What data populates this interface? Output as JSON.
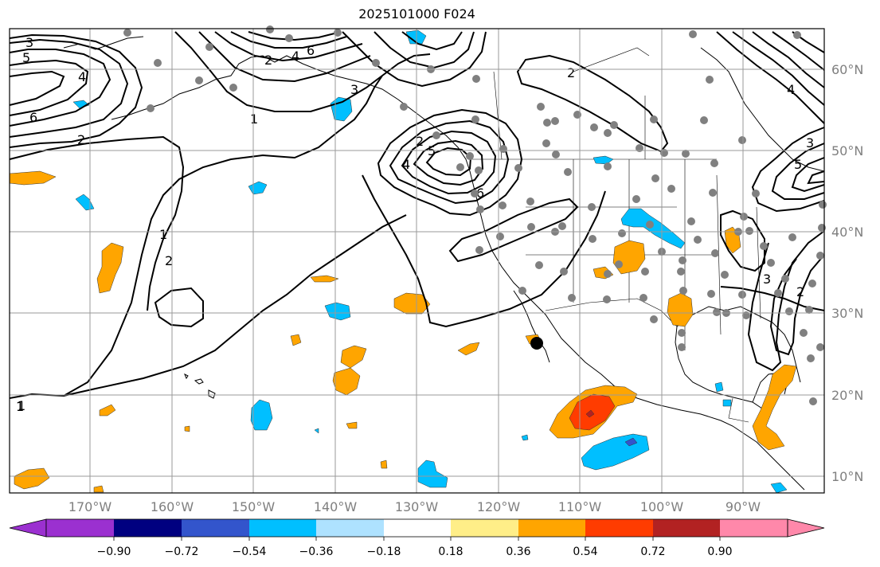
{
  "title": "2025101000 F024",
  "map": {
    "lon_labels": [
      "170°W",
      "160°W",
      "150°W",
      "140°W",
      "130°W",
      "120°W",
      "110°W",
      "100°W",
      "90°W"
    ],
    "lat_labels": [
      "60°N",
      "50°N",
      "40°N",
      "30°N",
      "20°N",
      "10°N"
    ],
    "contour_labels": [
      "3",
      "5",
      "4",
      "6",
      "2",
      "1",
      "2",
      "1",
      "4",
      "6",
      "2",
      "3",
      "4",
      "5",
      "6",
      "2",
      "1",
      "1",
      "2",
      "4",
      "5",
      "3",
      "2",
      "3"
    ],
    "marker_label": ""
  },
  "colorbar": {
    "ticks": [
      "−0.90",
      "−0.72",
      "−0.54",
      "−0.36",
      "−0.18",
      "0.18",
      "0.36",
      "0.54",
      "0.72",
      "0.90"
    ],
    "colors": [
      "#9b30d0",
      "#000080",
      "#3355cc",
      "#00bfff",
      "#aee2ff",
      "#ffffff",
      "#ffee88",
      "#ffa500",
      "#ff3c00",
      "#b22222",
      "#ff88aa"
    ]
  },
  "colors": {
    "positive": "#ffa500",
    "strong_positive": "#ff3c00",
    "negative": "#00bfff",
    "strong_negative": "#3355cc",
    "station": "#808080",
    "grid": "#9a9a9a"
  }
}
